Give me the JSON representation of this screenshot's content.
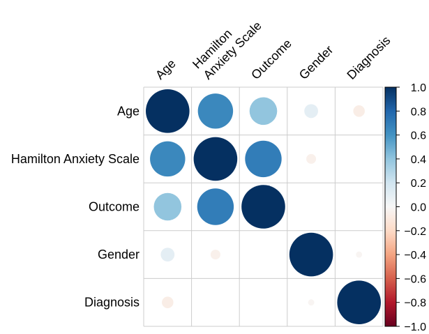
{
  "chart_data": {
    "type": "heatmap",
    "subtype": "correlation-circle-matrix",
    "variables": [
      "Age",
      "Hamilton Anxiety Scale",
      "Outcome",
      "Gender",
      "Diagnosis"
    ],
    "column_labels": [
      [
        "Age"
      ],
      [
        "Hamilton",
        "Anxiety Scale"
      ],
      [
        "Outcome"
      ],
      [
        "Gender"
      ],
      [
        "Diagnosis"
      ]
    ],
    "matrix": [
      [
        1.0,
        0.65,
        0.4,
        0.1,
        -0.07
      ],
      [
        0.65,
        1.0,
        0.7,
        -0.05,
        0.0
      ],
      [
        0.4,
        0.7,
        1.0,
        0.0,
        0.0
      ],
      [
        0.1,
        -0.05,
        0.0,
        1.0,
        -0.02
      ],
      [
        -0.07,
        0.0,
        0.0,
        -0.02,
        1.0
      ]
    ],
    "colorbar": {
      "range": [
        -1.0,
        1.0
      ],
      "ticks": [
        "1.0",
        "0.8",
        "0.6",
        "0.4",
        "0.2",
        "0.0",
        "−0.2",
        "−0.4",
        "−0.6",
        "−0.8",
        "−1.0"
      ],
      "stops": [
        {
          "value": -1.0,
          "color": "#67001f"
        },
        {
          "value": -0.8,
          "color": "#b2182b"
        },
        {
          "value": -0.6,
          "color": "#d6604d"
        },
        {
          "value": -0.4,
          "color": "#f4a582"
        },
        {
          "value": -0.2,
          "color": "#fddbc7"
        },
        {
          "value": 0.0,
          "color": "#f7f7f7"
        },
        {
          "value": 0.2,
          "color": "#d1e5f0"
        },
        {
          "value": 0.4,
          "color": "#92c5de"
        },
        {
          "value": 0.6,
          "color": "#4393c3"
        },
        {
          "value": 0.8,
          "color": "#2166ac"
        },
        {
          "value": 1.0,
          "color": "#053061"
        }
      ]
    },
    "grid_color": "#cccccc",
    "legend": "right"
  }
}
